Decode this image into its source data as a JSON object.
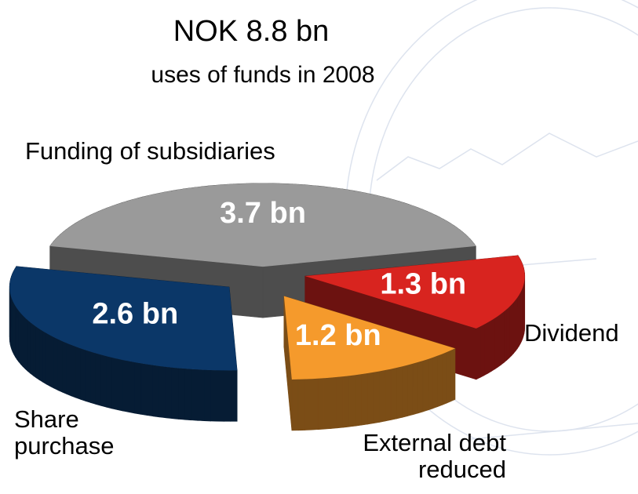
{
  "chart_data": {
    "type": "pie3d",
    "title": "NOK 8.8 bn",
    "subtitle": "uses of funds in 2008",
    "categories": [
      "Funding of subsidiaries",
      "Dividend",
      "External debt reduced",
      "Share purchase"
    ],
    "values": [
      3.7,
      1.3,
      1.2,
      2.6
    ],
    "value_labels": [
      "3.7 bn",
      "1.3 bn",
      "1.2 bn",
      "2.6 bn"
    ],
    "colors": [
      "#9a9a9a",
      "#d8241f",
      "#f59a2c",
      "#0b3768"
    ]
  }
}
